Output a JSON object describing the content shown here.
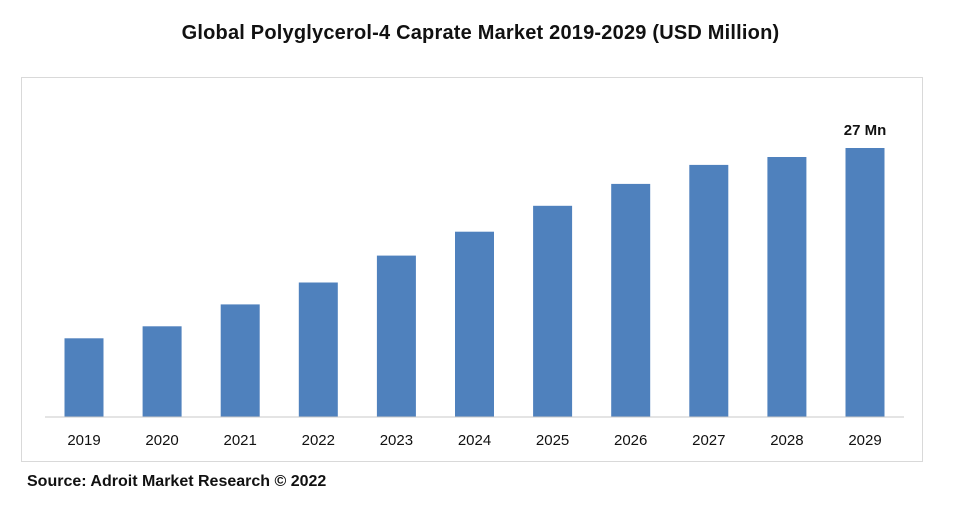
{
  "chart_data": {
    "type": "bar",
    "title": "Global Polyglycerol-4 Caprate Market 2019-2029 (USD Million)",
    "xlabel": "",
    "ylabel": "",
    "categories": [
      "2019",
      "2020",
      "2021",
      "2022",
      "2023",
      "2024",
      "2025",
      "2026",
      "2027",
      "2028",
      "2029"
    ],
    "values": [
      7.9,
      9.1,
      11.3,
      13.5,
      16.2,
      18.6,
      21.2,
      23.4,
      25.3,
      26.1,
      27
    ],
    "ylim": [
      0,
      30
    ],
    "grid": false,
    "legend": "none",
    "bar_color": "#4f81bd",
    "annotations": [
      {
        "category": "2029",
        "text": "27 Mn"
      }
    ]
  },
  "source": "Source: Adroit Market Research © 2022"
}
